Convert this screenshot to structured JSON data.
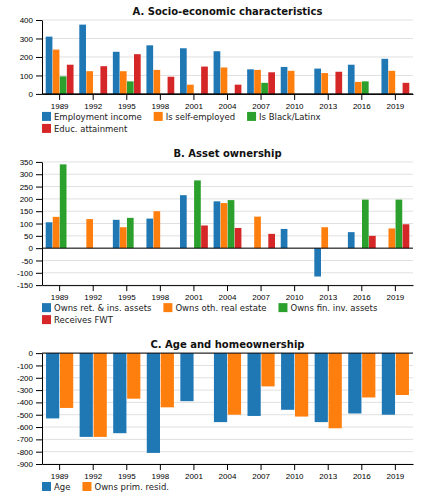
{
  "chart_data": [
    {
      "type": "bar",
      "title": "A. Socio-economic characteristics",
      "categories": [
        "1989",
        "1992",
        "1995",
        "1998",
        "2001",
        "2004",
        "2007",
        "2010",
        "2013",
        "2016",
        "2019"
      ],
      "series": [
        {
          "name": "Employment income",
          "values": [
            310,
            375,
            228,
            263,
            247,
            231,
            133,
            146,
            137,
            158,
            190
          ]
        },
        {
          "name": "Is self-employed",
          "values": [
            240,
            123,
            123,
            130,
            50,
            143,
            130,
            125,
            113,
            65,
            125
          ]
        },
        {
          "name": "Is Black/Latinx",
          "values": [
            95,
            null,
            68,
            null,
            null,
            null,
            60,
            null,
            null,
            68,
            null
          ]
        },
        {
          "name": "Educ. attainment",
          "values": [
            158,
            150,
            215,
            93,
            148,
            50,
            117,
            null,
            120,
            null,
            60
          ]
        }
      ],
      "ylim": [
        0,
        400
      ],
      "yticks": [
        0,
        100,
        200,
        300,
        400
      ],
      "grid": true,
      "legend": "bottom"
    },
    {
      "type": "bar",
      "title": "B. Asset ownership",
      "categories": [
        "1989",
        "1992",
        "1995",
        "1998",
        "2001",
        "2004",
        "2007",
        "2010",
        "2013",
        "2016",
        "2019"
      ],
      "series": [
        {
          "name": "Owns ret. & ins. assets",
          "values": [
            105,
            null,
            115,
            120,
            215,
            190,
            null,
            78,
            -115,
            65,
            null
          ]
        },
        {
          "name": "Owns oth. real estate",
          "values": [
            127,
            118,
            85,
            150,
            null,
            183,
            128,
            null,
            85,
            null,
            80
          ]
        },
        {
          "name": "Owns fin. inv. assets",
          "values": [
            340,
            null,
            123,
            null,
            275,
            195,
            null,
            null,
            null,
            197,
            197
          ]
        },
        {
          "name": "Receives FWT",
          "values": [
            null,
            null,
            null,
            null,
            92,
            82,
            58,
            null,
            null,
            50,
            97
          ]
        }
      ],
      "ylim": [
        -150,
        350
      ],
      "yticks": [
        -150,
        -100,
        -50,
        0,
        50,
        100,
        150,
        200,
        250,
        300,
        350
      ],
      "grid": true,
      "legend": "bottom"
    },
    {
      "type": "bar",
      "title": "C. Age and homeownership",
      "categories": [
        "1989",
        "1992",
        "1995",
        "1998",
        "2001",
        "2004",
        "2007",
        "2010",
        "2013",
        "2016",
        "2019"
      ],
      "series": [
        {
          "name": "Age",
          "values": [
            -530,
            -680,
            -650,
            -810,
            -390,
            -560,
            -510,
            -460,
            -560,
            -490,
            -500
          ]
        },
        {
          "name": "Owns prim. resid.",
          "values": [
            -445,
            -680,
            -370,
            -440,
            null,
            -500,
            -270,
            -515,
            -610,
            -360,
            -340
          ]
        }
      ],
      "ylim": [
        -900,
        0
      ],
      "yticks": [
        -900,
        -800,
        -700,
        -600,
        -500,
        -400,
        -300,
        -200,
        -100,
        0
      ],
      "grid": true,
      "legend": "bottom"
    }
  ]
}
